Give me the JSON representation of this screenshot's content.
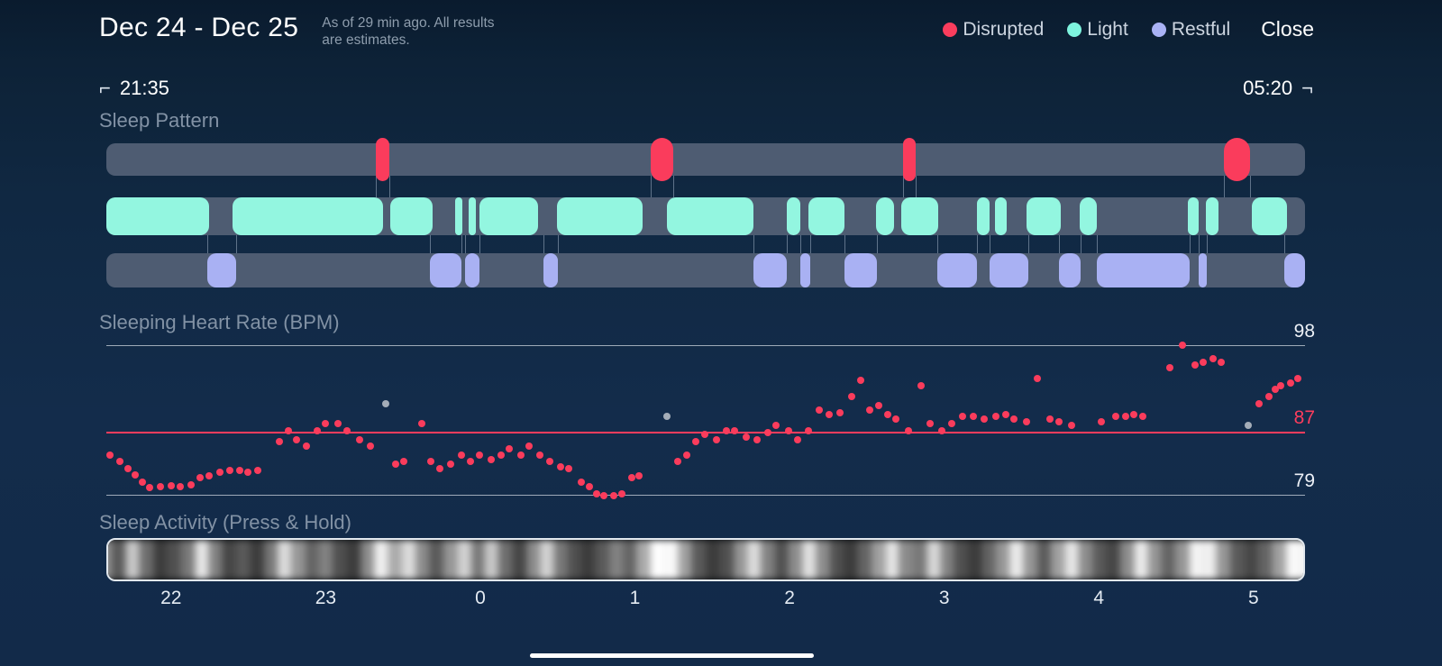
{
  "header": {
    "title": "Dec 24 - Dec 25",
    "subtitle_line1": "As of 29 min ago. All results",
    "subtitle_line2": "are estimates.",
    "legend": [
      {
        "label": "Disrupted",
        "color": "#fb3d5d"
      },
      {
        "label": "Light",
        "color": "#7ef4de"
      },
      {
        "label": "Restful",
        "color": "#a9b2f5"
      }
    ],
    "close_label": "Close"
  },
  "time_range": {
    "start": "21:35",
    "end": "05:20",
    "start_marker": "⌐",
    "end_marker": "¬"
  },
  "sections": {
    "sleep_pattern_title": "Sleep Pattern",
    "heart_rate_title": "Sleeping Heart Rate (BPM)",
    "activity_title": "Sleep Activity (Press & Hold)"
  },
  "sleep_pattern": {
    "track_color": "#4e5c72",
    "disrupted": {
      "color": "#fa3c5c",
      "segments": [
        [
          22.5,
          23.6
        ],
        [
          45.4,
          47.3
        ],
        [
          66.5,
          67.5
        ],
        [
          93.2,
          95.4
        ]
      ]
    },
    "light": {
      "color": "#93f6e0",
      "segments": [
        [
          0,
          8.6
        ],
        [
          10.5,
          23.1
        ],
        [
          23.7,
          27.2
        ],
        [
          29.1,
          29.7
        ],
        [
          30.2,
          30.8
        ],
        [
          31.1,
          36.0
        ],
        [
          37.6,
          44.7
        ],
        [
          46.8,
          54.0
        ],
        [
          56.8,
          57.9
        ],
        [
          58.6,
          61.6
        ],
        [
          64.2,
          65.7
        ],
        [
          66.3,
          69.4
        ],
        [
          72.6,
          73.7
        ],
        [
          74.1,
          75.1
        ],
        [
          76.8,
          79.6
        ],
        [
          81.2,
          82.6
        ],
        [
          90.2,
          91.1
        ],
        [
          91.7,
          92.8
        ],
        [
          95.6,
          98.5
        ]
      ]
    },
    "restful": {
      "color": "#a9b1f3",
      "segments": [
        [
          8.4,
          10.8
        ],
        [
          27.0,
          29.6
        ],
        [
          29.9,
          31.1
        ],
        [
          36.5,
          37.7
        ],
        [
          54.0,
          56.8
        ],
        [
          57.9,
          58.7
        ],
        [
          61.6,
          64.3
        ],
        [
          69.3,
          72.6
        ],
        [
          73.7,
          76.9
        ],
        [
          79.5,
          81.3
        ],
        [
          82.6,
          90.4
        ],
        [
          91.1,
          91.8
        ],
        [
          98.3,
          100
        ]
      ]
    }
  },
  "chart_data": {
    "type": "scatter",
    "title": "Sleeping Heart Rate (BPM)",
    "x_range": [
      "21:35",
      "05:20"
    ],
    "x_unit": "percent of night",
    "ylim": [
      79,
      98
    ],
    "gridlines": [
      98,
      87,
      79
    ],
    "y_labels": [
      "98",
      "87",
      "79"
    ],
    "avg_line": 87,
    "point_color": "#fa3c5c",
    "gray_point_color": "#a4adb8",
    "points": [
      [
        0.3,
        84.0
      ],
      [
        1.1,
        83.2
      ],
      [
        1.8,
        82.3
      ],
      [
        2.4,
        81.5
      ],
      [
        3.0,
        80.6
      ],
      [
        3.6,
        79.9
      ],
      [
        4.5,
        80.0
      ],
      [
        5.4,
        80.1
      ],
      [
        6.2,
        80.0
      ],
      [
        7.1,
        80.3
      ],
      [
        7.8,
        81.2
      ],
      [
        8.6,
        81.4
      ],
      [
        9.5,
        81.9
      ],
      [
        10.3,
        82.1
      ],
      [
        11.1,
        82.1
      ],
      [
        11.8,
        81.9
      ],
      [
        12.6,
        82.1
      ],
      [
        14.4,
        85.7
      ],
      [
        15.2,
        87.1
      ],
      [
        15.9,
        86.0
      ],
      [
        16.7,
        85.2
      ],
      [
        17.6,
        87.1
      ],
      [
        18.3,
        88.0
      ],
      [
        19.3,
        88.0
      ],
      [
        20.1,
        87.1
      ],
      [
        21.1,
        86.0
      ],
      [
        22.0,
        85.2
      ],
      [
        24.1,
        82.9
      ],
      [
        24.8,
        83.2
      ],
      [
        26.3,
        88.0
      ],
      [
        27.1,
        83.2
      ],
      [
        27.8,
        82.3
      ],
      [
        28.7,
        82.9
      ],
      [
        29.6,
        84.0
      ],
      [
        30.4,
        83.2
      ],
      [
        31.1,
        84.0
      ],
      [
        32.1,
        83.5
      ],
      [
        32.9,
        84.0
      ],
      [
        33.6,
        84.8
      ],
      [
        34.6,
        84.0
      ],
      [
        35.3,
        85.2
      ],
      [
        36.2,
        84.0
      ],
      [
        37.0,
        83.2
      ],
      [
        37.9,
        82.5
      ],
      [
        38.6,
        82.3
      ],
      [
        39.6,
        80.6
      ],
      [
        40.3,
        80.0
      ],
      [
        40.9,
        79.1
      ],
      [
        41.5,
        78.9
      ],
      [
        42.3,
        78.9
      ],
      [
        43.0,
        79.1
      ],
      [
        43.8,
        81.2
      ],
      [
        44.4,
        81.4
      ],
      [
        47.7,
        83.2
      ],
      [
        48.4,
        84.0
      ],
      [
        49.2,
        85.7
      ],
      [
        49.9,
        86.7
      ],
      [
        50.9,
        86.0
      ],
      [
        51.7,
        87.1
      ],
      [
        52.4,
        87.1
      ],
      [
        53.4,
        86.3
      ],
      [
        54.3,
        86.0
      ],
      [
        55.2,
        86.9
      ],
      [
        55.9,
        87.8
      ],
      [
        56.9,
        87.1
      ],
      [
        57.7,
        86.0
      ],
      [
        58.6,
        87.1
      ],
      [
        59.5,
        89.8
      ],
      [
        60.3,
        89.2
      ],
      [
        61.2,
        89.4
      ],
      [
        62.2,
        91.5
      ],
      [
        62.9,
        93.5
      ],
      [
        63.7,
        89.8
      ],
      [
        64.4,
        90.3
      ],
      [
        65.2,
        89.2
      ],
      [
        65.9,
        88.6
      ],
      [
        66.9,
        87.1
      ],
      [
        68.0,
        92.8
      ],
      [
        68.7,
        88.0
      ],
      [
        69.7,
        87.1
      ],
      [
        70.5,
        88.0
      ],
      [
        71.4,
        89.0
      ],
      [
        72.3,
        89.0
      ],
      [
        73.2,
        88.6
      ],
      [
        74.2,
        89.0
      ],
      [
        75.0,
        89.2
      ],
      [
        75.7,
        88.6
      ],
      [
        76.8,
        88.3
      ],
      [
        77.7,
        93.8
      ],
      [
        78.7,
        88.6
      ],
      [
        79.5,
        88.3
      ],
      [
        80.5,
        87.8
      ],
      [
        83.0,
        88.3
      ],
      [
        84.2,
        89.0
      ],
      [
        85.0,
        89.0
      ],
      [
        85.7,
        89.2
      ],
      [
        86.5,
        89.0
      ],
      [
        88.7,
        95.1
      ],
      [
        89.8,
        98.0
      ],
      [
        90.8,
        95.5
      ],
      [
        91.5,
        95.8
      ],
      [
        92.3,
        96.3
      ],
      [
        93.0,
        95.8
      ],
      [
        96.2,
        90.6
      ],
      [
        97.0,
        91.5
      ],
      [
        97.5,
        92.4
      ],
      [
        98.0,
        92.8
      ],
      [
        98.8,
        93.2
      ],
      [
        99.4,
        93.8
      ]
    ],
    "gray_points": [
      [
        23.3,
        90.6
      ],
      [
        46.8,
        89.0
      ],
      [
        95.3,
        87.8
      ]
    ]
  },
  "activity": {
    "intensities": [
      70,
      150,
      90,
      200,
      110,
      60,
      80,
      120,
      230,
      130,
      70,
      90,
      60,
      120,
      220,
      150,
      100,
      130,
      80,
      60,
      140,
      240,
      170,
      220,
      140,
      90,
      150,
      210,
      120,
      200,
      110,
      70,
      140,
      210,
      120,
      80,
      60,
      90,
      130,
      100,
      170,
      255,
      250,
      160,
      90,
      60,
      80,
      150,
      220,
      130,
      80,
      140,
      225,
      140,
      80,
      60,
      100,
      160,
      230,
      140,
      120,
      215,
      130,
      80,
      60,
      100,
      150,
      235,
      150,
      90,
      160,
      230,
      140,
      90,
      70,
      140,
      235,
      150,
      100,
      150,
      245,
      240,
      150,
      90,
      70,
      100,
      160,
      250,
      245,
      160
    ]
  },
  "x_axis": {
    "ticks": [
      {
        "label": "22",
        "pct": 5.4
      },
      {
        "label": "23",
        "pct": 18.3
      },
      {
        "label": "0",
        "pct": 31.2
      },
      {
        "label": "1",
        "pct": 44.1
      },
      {
        "label": "2",
        "pct": 57.0
      },
      {
        "label": "3",
        "pct": 69.9
      },
      {
        "label": "4",
        "pct": 82.8
      },
      {
        "label": "5",
        "pct": 95.7
      }
    ]
  }
}
